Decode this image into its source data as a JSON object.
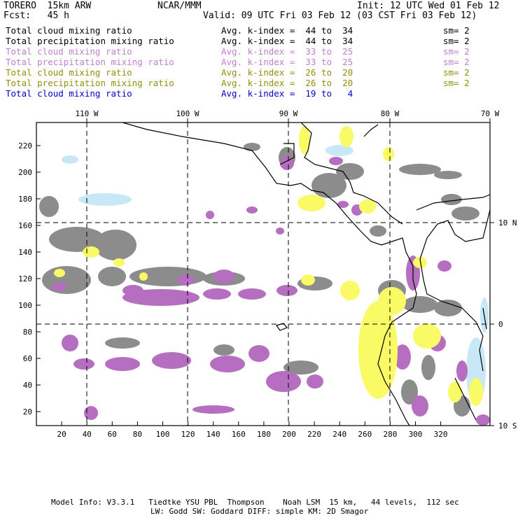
{
  "header": {
    "model": "TORERO  15km ARW",
    "org": "NCAR/MMM",
    "init": "Init: 12 UTC Wed 01 Feb 12",
    "fcst": "Fcst:   45 h",
    "valid": "Valid: 09 UTC Fri 03 Feb 12 (03 CST Fri 03 Feb 12)"
  },
  "legend": [
    {
      "field": "Total cloud mixing ratio",
      "index": "Avg. k-index =  44 to  34",
      "sm": "sm= 2",
      "color": "#000000"
    },
    {
      "field": "Total precipitation mixing ratio",
      "index": "Avg. k-index =  44 to  34",
      "sm": "sm= 2",
      "color": "#000000"
    },
    {
      "field": "Total cloud mixing ratio",
      "index": "Avg. k-index =  33 to  25",
      "sm": "sm= 2",
      "color": "#c080d0"
    },
    {
      "field": "Total precipitation mixing ratio",
      "index": "Avg. k-index =  33 to  25",
      "sm": "sm= 2",
      "color": "#c080d0"
    },
    {
      "field": "Total cloud mixing ratio",
      "index": "Avg. k-index =  26 to  20",
      "sm": "sm= 2",
      "color": "#909010"
    },
    {
      "field": "Total precipitation mixing ratio",
      "index": "Avg. k-index =  26 to  20",
      "sm": "sm= 2",
      "color": "#909010"
    },
    {
      "field": "Total cloud mixing ratio",
      "index": "Avg. k-index =  19 to   4",
      "sm": "",
      "color": "#0000cc"
    }
  ],
  "axes": {
    "lon_labels": [
      "110 W",
      "100 W",
      "90 W",
      "80 W",
      "70 W"
    ],
    "lat_labels": [
      "10 N",
      "0",
      "10 S"
    ],
    "x_ticks": [
      "20",
      "40",
      "60",
      "80",
      "100",
      "120",
      "140",
      "160",
      "180",
      "200",
      "220",
      "240",
      "260",
      "280",
      "300",
      "320"
    ],
    "y_ticks": [
      "220",
      "200",
      "180",
      "160",
      "140",
      "120",
      "100",
      "80",
      "60",
      "40",
      "20"
    ]
  },
  "footer": {
    "line1": "Model Info: V3.3.1   Tiedtke YSU PBL  Thompson    Noah LSM  15 km,   44 levels,  112 sec",
    "line2": "LW: Godd SW: Goddard DIFF: simple KM: 2D Smagor"
  },
  "colors": {
    "gray": "#8c8c8c",
    "purple": "#b56ec0",
    "yellow": "#fafa66",
    "lightblue": "#c8e8f8",
    "coast": "#000000"
  }
}
